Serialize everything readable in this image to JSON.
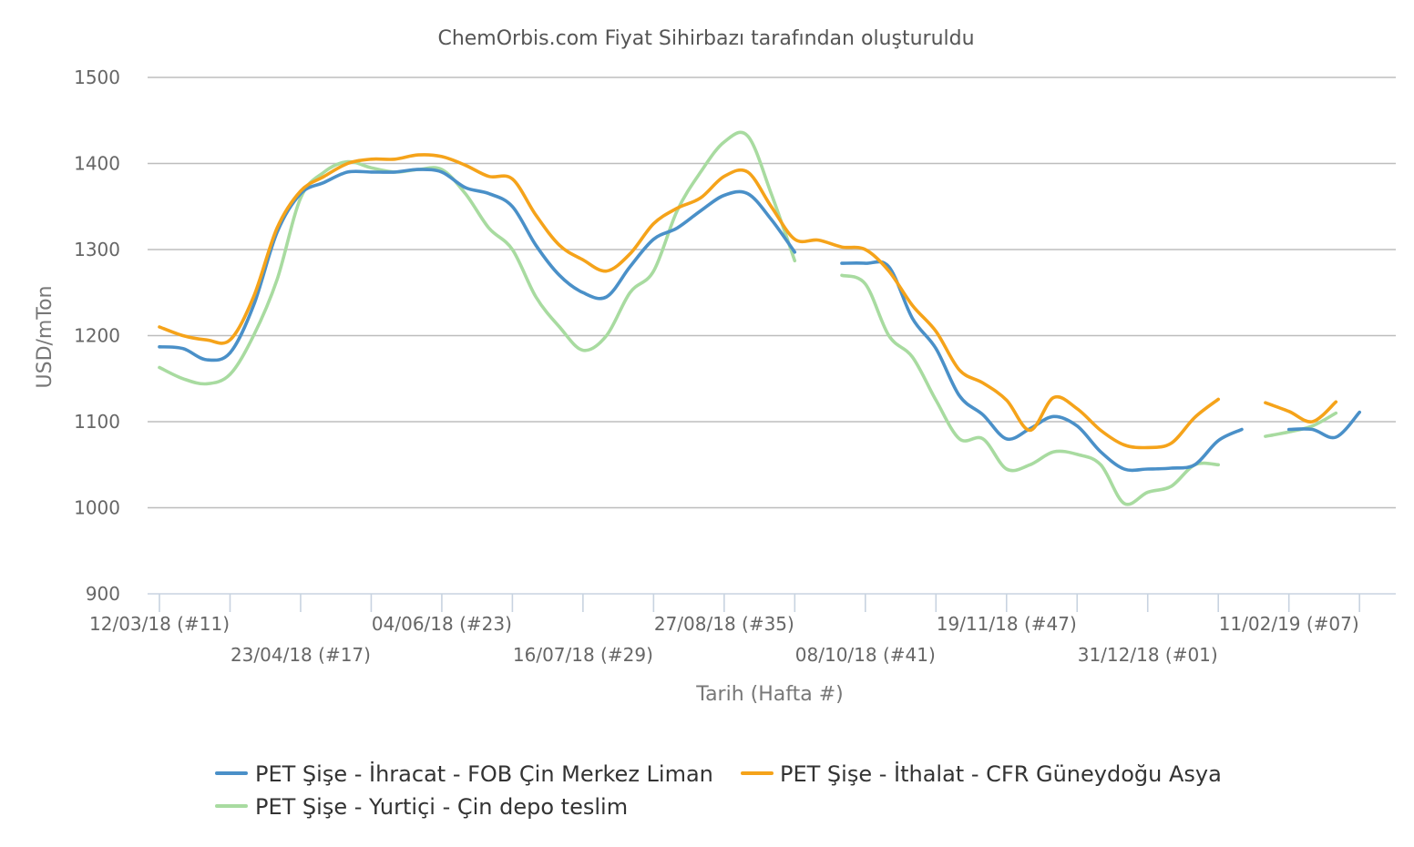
{
  "chart_data": {
    "type": "line",
    "title": "ChemOrbis.com Fiyat Sihirbazı tarafından oluşturuldu",
    "xlabel": "Tarih (Hafta #)",
    "ylabel": "USD/mTon",
    "ylim": [
      900,
      1500
    ],
    "yticks": [
      900,
      1000,
      1100,
      1200,
      1300,
      1400,
      1500
    ],
    "grid": true,
    "legend_position": "bottom",
    "x_week_count": 53,
    "x_tick_every_weeks": 3,
    "x_labels": [
      {
        "week": 0,
        "label": "12/03/18 (#11)",
        "row": 0
      },
      {
        "week": 6,
        "label": "23/04/18 (#17)",
        "row": 1
      },
      {
        "week": 12,
        "label": "04/06/18 (#23)",
        "row": 0
      },
      {
        "week": 18,
        "label": "16/07/18 (#29)",
        "row": 1
      },
      {
        "week": 24,
        "label": "27/08/18 (#35)",
        "row": 0
      },
      {
        "week": 30,
        "label": "08/10/18 (#41)",
        "row": 1
      },
      {
        "week": 36,
        "label": "19/11/18 (#47)",
        "row": 0
      },
      {
        "week": 42,
        "label": "31/12/18 (#01)",
        "row": 1
      },
      {
        "week": 48,
        "label": "11/02/19 (#07)",
        "row": 0
      }
    ],
    "series": [
      {
        "name": "PET Şişe - İhracat - FOB Çin Merkez Liman",
        "color": "#4a90c8",
        "values": [
          1187,
          1185,
          1172,
          1180,
          1235,
          1320,
          1365,
          1378,
          1390,
          1390,
          1390,
          1393,
          1390,
          1372,
          1365,
          1350,
          1305,
          1270,
          1250,
          1245,
          1280,
          1312,
          1325,
          1345,
          1363,
          1365,
          1335,
          1297,
          null,
          1284,
          1284,
          1280,
          1220,
          1185,
          1130,
          1108,
          1080,
          1092,
          1106,
          1095,
          1065,
          1045,
          1045,
          1046,
          1050,
          1078,
          1091,
          null,
          1091,
          1091,
          1082,
          1111
        ]
      },
      {
        "name": "PET Şişe - İthalat - CFR Güneydoğu Asya",
        "color": "#f5a31a",
        "values": [
          1210,
          1200,
          1195,
          1195,
          1245,
          1325,
          1368,
          1385,
          1400,
          1405,
          1405,
          1410,
          1408,
          1398,
          1385,
          1382,
          1340,
          1305,
          1288,
          1275,
          1295,
          1330,
          1348,
          1360,
          1385,
          1390,
          1350,
          1312,
          1311,
          1303,
          1300,
          1275,
          1235,
          1205,
          1160,
          1145,
          1125,
          1090,
          1128,
          1115,
          1090,
          1073,
          1070,
          1075,
          1105,
          1126,
          null,
          1122,
          1112,
          1100,
          1123
        ]
      },
      {
        "name": "PET Şişe - Yurtiçi - Çin depo teslim",
        "color": "#a8dba0",
        "values": [
          1163,
          1150,
          1144,
          1155,
          1200,
          1265,
          1360,
          1390,
          1402,
          1395,
          1390,
          1393,
          1393,
          1365,
          1325,
          1300,
          1245,
          1210,
          1183,
          1200,
          1250,
          1275,
          1345,
          1390,
          1425,
          1432,
          1365,
          1287,
          null,
          1270,
          1260,
          1200,
          1175,
          1125,
          1080,
          1080,
          1045,
          1050,
          1065,
          1062,
          1050,
          1005,
          1018,
          1025,
          1050,
          1050,
          null,
          1083,
          1088,
          1095,
          1110
        ]
      }
    ]
  },
  "legend": {
    "items": [
      {
        "label": "PET Şişe - İhracat - FOB Çin Merkez Liman",
        "color": "#4a90c8"
      },
      {
        "label": "PET Şişe - İthalat - CFR Güneydoğu Asya",
        "color": "#f5a31a"
      },
      {
        "label": "PET Şişe - Yurtiçi - Çin depo teslim",
        "color": "#a8dba0"
      }
    ]
  }
}
